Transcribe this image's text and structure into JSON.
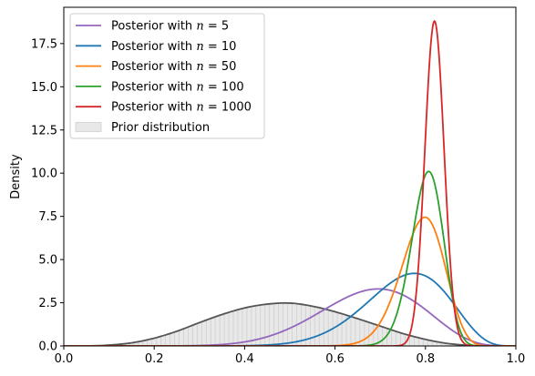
{
  "chart_data": {
    "type": "area",
    "title": "",
    "xlabel": "",
    "ylabel": "Density",
    "xlim": [
      0.0,
      1.0
    ],
    "ylim": [
      0.0,
      19.6
    ],
    "x_ticks": [
      "0.0",
      "0.2",
      "0.4",
      "0.6",
      "0.8",
      "1.0"
    ],
    "y_ticks": [
      "0.0",
      "2.5",
      "5.0",
      "7.5",
      "10.0",
      "12.5",
      "15.0",
      "17.5"
    ],
    "grid": false,
    "legend_position": "top-left",
    "prior": {
      "name": "Prior distribution",
      "color": "#555555",
      "fill": "#e8e8e8",
      "x": [
        0.0,
        0.05,
        0.1,
        0.15,
        0.2,
        0.25,
        0.3,
        0.35,
        0.4,
        0.45,
        0.5,
        0.55,
        0.6,
        0.65,
        0.7,
        0.75,
        0.8,
        0.85,
        0.9,
        0.95,
        1.0
      ],
      "values": [
        0.0,
        0.0,
        0.05,
        0.18,
        0.45,
        0.85,
        1.35,
        1.82,
        2.2,
        2.42,
        2.48,
        2.3,
        1.98,
        1.58,
        1.15,
        0.72,
        0.38,
        0.14,
        0.03,
        0.0,
        0.0
      ]
    },
    "series": [
      {
        "name": "Posterior with $n = 5$",
        "label_prefix": "Posterior with ",
        "label_var": "n",
        "label_suffix": " = 5",
        "color": "#9467bd",
        "dist": "beta",
        "a": 11.3,
        "b": 5.5,
        "peak": 3.3
      },
      {
        "name": "Posterior with $n = 10$",
        "label_prefix": "Posterior with ",
        "label_var": "n",
        "label_suffix": " = 10",
        "color": "#1f77b4",
        "dist": "beta",
        "a": 16.2,
        "b": 5.4,
        "peak": 4.2
      },
      {
        "name": "Posterior with $n = 50$",
        "label_prefix": "Posterior with ",
        "label_var": "n",
        "label_suffix": " = 50",
        "color": "#ff7f0e",
        "dist": "beta",
        "a": 55.0,
        "b": 14.6,
        "peak": 7.45
      },
      {
        "name": "Posterior with $n = 100$",
        "label_prefix": "Posterior with ",
        "label_var": "n",
        "label_suffix": " = 100",
        "color": "#2ca02c",
        "dist": "beta",
        "a": 101.0,
        "b": 24.9,
        "peak": 10.1
      },
      {
        "name": "Posterior with $n = 1000$",
        "label_prefix": "Posterior with ",
        "label_var": "n",
        "label_suffix": " = 1000",
        "color": "#d62728",
        "dist": "normal",
        "mean": 0.82,
        "sd": 0.0212,
        "peak": 18.8
      }
    ]
  }
}
